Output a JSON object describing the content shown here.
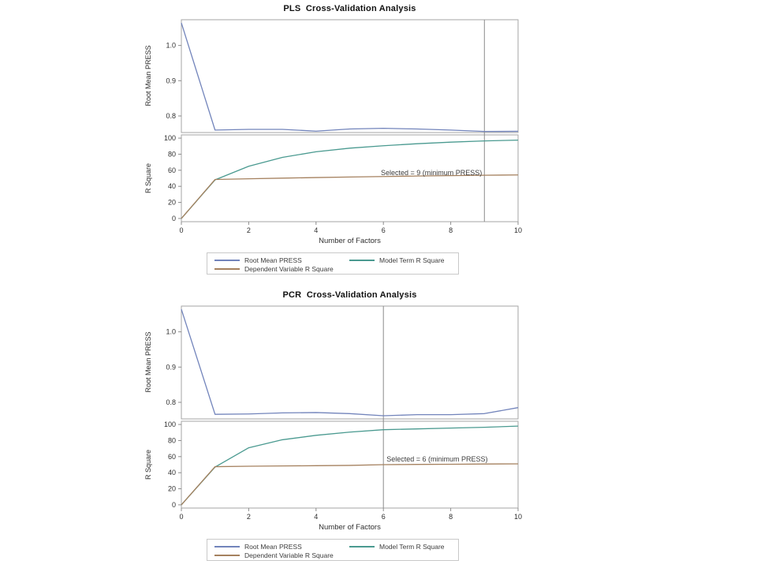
{
  "palette": {
    "root_mean_press": "#7284bb",
    "model_term_r_square": "#4a9a90",
    "dependent_variable_r_square": "#a5815f",
    "wall_border": "#a6a6a6",
    "reference_line": "#8c8c8c",
    "tick_mark": "#8c8c8c",
    "text": "#2e2e2e",
    "legend_border": "#c9c9c9"
  },
  "chart_data": [
    {
      "type": "line",
      "title": "PLS  Cross-Validation Analysis",
      "xlabel": "Number of Factors",
      "x": [
        0,
        1,
        2,
        3,
        4,
        5,
        6,
        7,
        8,
        9,
        10
      ],
      "xlim": [
        0,
        10
      ],
      "xticks": [
        0,
        2,
        4,
        6,
        8,
        10
      ],
      "xtick_labels": [
        "0",
        "2",
        "4",
        "6",
        "8",
        "10"
      ],
      "refline_x": 9,
      "annotation": {
        "text": "Selected = 9 (minimum PRESS)",
        "x": 9,
        "y": 62,
        "anchor": "end"
      },
      "panels": [
        {
          "ylabel": "Root Mean PRESS",
          "ylim": [
            0.753,
            1.073
          ],
          "yticks": [
            0.8,
            0.9,
            1.0
          ],
          "ytick_labels": [
            "0.8",
            "0.9",
            "1.0"
          ],
          "series": [
            {
              "name": "Root Mean PRESS",
              "color": "root_mean_press",
              "values": [
                1.064,
                0.76,
                0.762,
                0.762,
                0.757,
                0.763,
                0.765,
                0.763,
                0.76,
                0.756,
                0.7565
              ]
            }
          ]
        },
        {
          "ylabel": "R Square",
          "ylim": [
            -4,
            104
          ],
          "yticks": [
            0,
            20,
            40,
            60,
            80,
            100
          ],
          "ytick_labels": [
            "0",
            "20",
            "40",
            "60",
            "80",
            "100"
          ],
          "series": [
            {
              "name": "Model Term R Square",
              "color": "model_term_r_square",
              "values": [
                0,
                48,
                65,
                76,
                83,
                87.5,
                90.5,
                93,
                95,
                96.5,
                97.5
              ]
            },
            {
              "name": "Dependent Variable R Square",
              "color": "dependent_variable_r_square",
              "values": [
                0,
                48.5,
                49.4,
                50.2,
                50.9,
                51.6,
                52.2,
                52.8,
                53.3,
                53.8,
                54.2
              ]
            }
          ]
        }
      ],
      "legend": [
        {
          "label": "Root Mean PRESS",
          "color": "root_mean_press"
        },
        {
          "label": "Model Term R Square",
          "color": "model_term_r_square"
        },
        {
          "label": "Dependent Variable R Square",
          "color": "dependent_variable_r_square"
        }
      ]
    },
    {
      "type": "line",
      "title": "PCR  Cross-Validation Analysis",
      "xlabel": "Number of Factors",
      "x": [
        0,
        1,
        2,
        3,
        4,
        5,
        6,
        7,
        8,
        9,
        10
      ],
      "xlim": [
        0,
        10
      ],
      "xticks": [
        0,
        2,
        4,
        6,
        8,
        10
      ],
      "xtick_labels": [
        "0",
        "2",
        "4",
        "6",
        "8",
        "10"
      ],
      "refline_x": 6,
      "annotation": {
        "text": "Selected = 6 (minimum PRESS)",
        "x": 6,
        "y": 62,
        "anchor": "start"
      },
      "panels": [
        {
          "ylabel": "Root Mean PRESS",
          "ylim": [
            0.753,
            1.073
          ],
          "yticks": [
            0.8,
            0.9,
            1.0
          ],
          "ytick_labels": [
            "0.8",
            "0.9",
            "1.0"
          ],
          "series": [
            {
              "name": "Root Mean PRESS",
              "color": "root_mean_press",
              "values": [
                1.064,
                0.766,
                0.767,
                0.77,
                0.771,
                0.768,
                0.762,
                0.765,
                0.765,
                0.768,
                0.785
              ]
            }
          ]
        },
        {
          "ylabel": "R Square",
          "ylim": [
            -4,
            104
          ],
          "yticks": [
            0,
            20,
            40,
            60,
            80,
            100
          ],
          "ytick_labels": [
            "0",
            "20",
            "40",
            "60",
            "80",
            "100"
          ],
          "series": [
            {
              "name": "Model Term R Square",
              "color": "model_term_r_square",
              "values": [
                0,
                47,
                71,
                81,
                86.5,
                90.5,
                93.5,
                94.5,
                95.5,
                96.5,
                98
              ]
            },
            {
              "name": "Dependent Variable R Square",
              "color": "dependent_variable_r_square",
              "values": [
                0,
                47.5,
                48.0,
                48.4,
                48.7,
                49.1,
                50.0,
                50.3,
                50.5,
                50.8,
                51.0
              ]
            }
          ]
        }
      ],
      "legend": [
        {
          "label": "Root Mean PRESS",
          "color": "root_mean_press"
        },
        {
          "label": "Model Term R Square",
          "color": "model_term_r_square"
        },
        {
          "label": "Dependent Variable R Square",
          "color": "dependent_variable_r_square"
        }
      ]
    }
  ]
}
